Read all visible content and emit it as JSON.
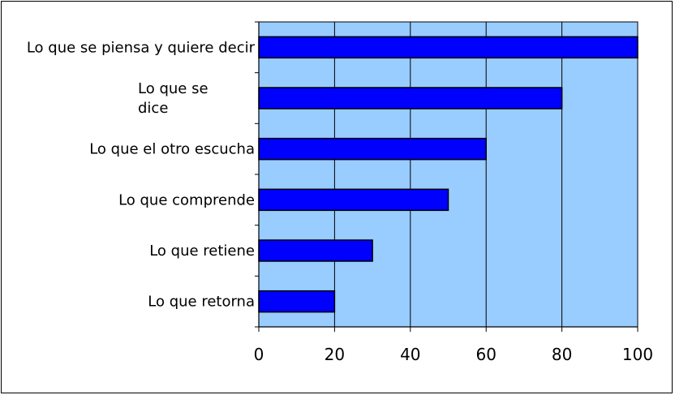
{
  "chart_data": {
    "type": "bar",
    "orientation": "horizontal",
    "categories": [
      [
        "Lo que se piensa y quiere decir"
      ],
      [
        "Lo que se",
        "dice"
      ],
      [
        "Lo que el otro escucha"
      ],
      [
        "Lo que comprende"
      ],
      [
        "Lo que retiene"
      ],
      [
        "Lo que retorna"
      ]
    ],
    "values": [
      100,
      80,
      60,
      50,
      30,
      20
    ],
    "xlim": [
      0,
      100
    ],
    "xticks": [
      0,
      20,
      40,
      60,
      80,
      100
    ],
    "title": "",
    "xlabel": "",
    "ylabel": "",
    "grid": true,
    "legend": "none",
    "colors": {
      "plot_background": "#99ccff",
      "bar_fill": "#0000ff",
      "bar_stroke": "#000000",
      "grid": "#000000"
    }
  }
}
